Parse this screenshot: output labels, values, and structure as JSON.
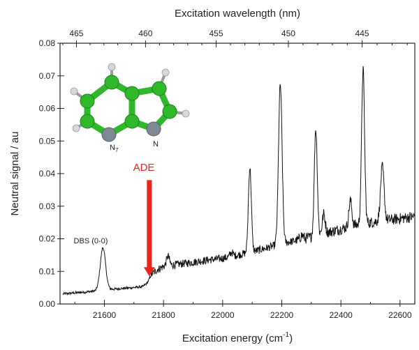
{
  "chart_data": {
    "type": "line",
    "title": "",
    "xlabel": "Excitation energy (cm",
    "xlabel_superscript": "-1",
    "xlabel_close": ")",
    "ylabel": "Neutral signal / au",
    "top_xlabel": "Excitation wavelength (nm)",
    "xlim": [
      21450,
      22650
    ],
    "ylim": [
      0,
      0.08
    ],
    "x_ticks": [
      21600,
      21800,
      22000,
      22200,
      22400,
      22600
    ],
    "y_ticks": [
      0.0,
      0.01,
      0.02,
      0.03,
      0.04,
      0.05,
      0.06,
      0.07,
      0.08
    ],
    "top_ticks_nm": [
      465,
      460,
      455,
      450,
      445
    ],
    "grid": false,
    "legend": "none",
    "line_color": "#111111",
    "baseline": [
      [
        21460,
        0.0031
      ],
      [
        21500,
        0.0034
      ],
      [
        21540,
        0.0037
      ],
      [
        21570,
        0.004
      ],
      [
        21620,
        0.0045
      ],
      [
        21680,
        0.0049
      ],
      [
        21730,
        0.0053
      ],
      [
        21745,
        0.0065
      ],
      [
        21760,
        0.0092
      ],
      [
        21780,
        0.0106
      ],
      [
        21800,
        0.0115
      ],
      [
        21850,
        0.0122
      ],
      [
        21900,
        0.0128
      ],
      [
        21950,
        0.0135
      ],
      [
        22000,
        0.014
      ],
      [
        22050,
        0.015
      ],
      [
        22100,
        0.016
      ],
      [
        22150,
        0.0172
      ],
      [
        22200,
        0.0185
      ],
      [
        22250,
        0.0195
      ],
      [
        22300,
        0.0205
      ],
      [
        22350,
        0.0218
      ],
      [
        22400,
        0.023
      ],
      [
        22450,
        0.0242
      ],
      [
        22500,
        0.025
      ],
      [
        22550,
        0.0256
      ],
      [
        22600,
        0.0262
      ],
      [
        22650,
        0.0268
      ]
    ],
    "peaks": [
      {
        "x": 21595,
        "height": 0.013,
        "width": 9
      },
      {
        "x": 21815,
        "height": 0.003,
        "width": 5
      },
      {
        "x": 22030,
        "height": 0.0012,
        "width": 5
      },
      {
        "x": 22092,
        "height": 0.026,
        "width": 5
      },
      {
        "x": 22195,
        "height": 0.049,
        "width": 6
      },
      {
        "x": 22268,
        "height": 0.0012,
        "width": 5
      },
      {
        "x": 22315,
        "height": 0.033,
        "width": 5
      },
      {
        "x": 22342,
        "height": 0.006,
        "width": 5
      },
      {
        "x": 22432,
        "height": 0.008,
        "width": 5
      },
      {
        "x": 22475,
        "height": 0.0475,
        "width": 5
      },
      {
        "x": 22540,
        "height": 0.0165,
        "width": 6
      }
    ],
    "annotations": [
      {
        "text": "DBS (0-0)",
        "x": 21590,
        "y": 0.019
      },
      {
        "text": "ADE",
        "x": 21755,
        "y": 0.0405,
        "color": "#e8241c"
      }
    ],
    "arrow": {
      "x": 21752,
      "y_start": 0.038,
      "y_end": 0.0085,
      "color": "#e8241c"
    },
    "molecule_labels": {
      "n7": "N",
      "n7_sub": "7",
      "n": "N"
    }
  }
}
